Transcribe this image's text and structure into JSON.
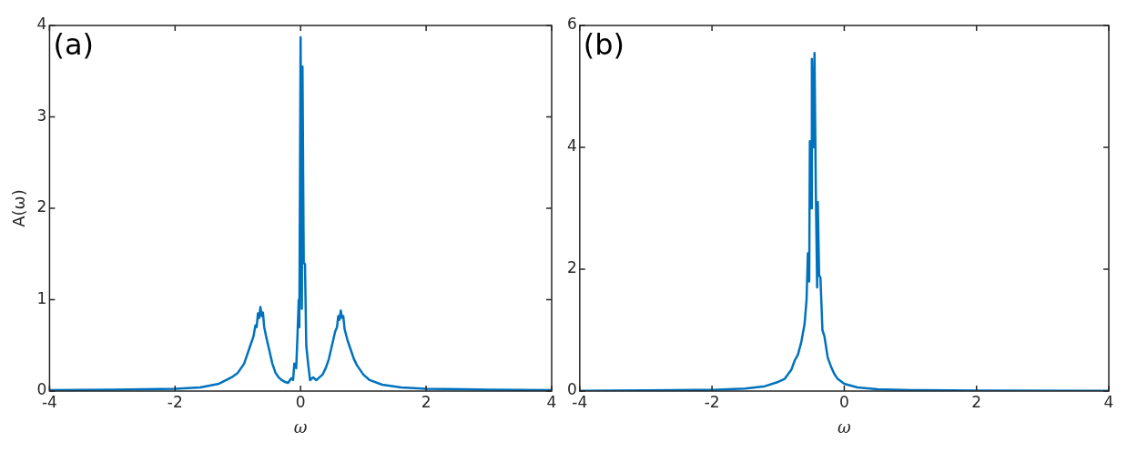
{
  "chart_data": [
    {
      "type": "line",
      "annotations": [
        "(a)"
      ],
      "xlabel": "ω",
      "ylabel": "A(ω)",
      "xlim": [
        -4,
        4
      ],
      "xticks": [
        -4,
        -2,
        0,
        2,
        4
      ],
      "ylim": [
        0,
        4
      ],
      "yticks": [
        0,
        1,
        2,
        3,
        4
      ],
      "grid": false,
      "legend": false,
      "marker": "none",
      "line_style": "solid",
      "series": [
        {
          "color": "#0072bd",
          "x": [
            -4,
            -3,
            -2,
            -1.6,
            -1.3,
            -1.1,
            -1.0,
            -0.9,
            -0.85,
            -0.8,
            -0.75,
            -0.72,
            -0.7,
            -0.68,
            -0.66,
            -0.64,
            -0.62,
            -0.6,
            -0.58,
            -0.55,
            -0.5,
            -0.45,
            -0.4,
            -0.35,
            -0.3,
            -0.25,
            -0.2,
            -0.15,
            -0.12,
            -0.1,
            -0.07,
            -0.05,
            -0.03,
            -0.02,
            0,
            0.02,
            0.03,
            0.05,
            0.07,
            0.09,
            0.12,
            0.15,
            0.2,
            0.25,
            0.3,
            0.35,
            0.4,
            0.45,
            0.5,
            0.55,
            0.58,
            0.6,
            0.62,
            0.64,
            0.66,
            0.68,
            0.7,
            0.75,
            0.8,
            0.85,
            0.9,
            1.0,
            1.1,
            1.3,
            1.6,
            2,
            3,
            4
          ],
          "values": [
            0.01,
            0.015,
            0.025,
            0.04,
            0.08,
            0.15,
            0.2,
            0.3,
            0.4,
            0.5,
            0.6,
            0.72,
            0.7,
            0.85,
            0.8,
            0.92,
            0.82,
            0.86,
            0.7,
            0.6,
            0.45,
            0.3,
            0.2,
            0.15,
            0.12,
            0.1,
            0.09,
            0.14,
            0.12,
            0.3,
            0.25,
            0.6,
            1.0,
            0.7,
            3.87,
            0.9,
            3.55,
            1.4,
            1.39,
            0.5,
            0.3,
            0.12,
            0.15,
            0.12,
            0.15,
            0.18,
            0.25,
            0.35,
            0.5,
            0.65,
            0.7,
            0.82,
            0.78,
            0.88,
            0.8,
            0.82,
            0.68,
            0.55,
            0.45,
            0.35,
            0.28,
            0.18,
            0.12,
            0.07,
            0.04,
            0.025,
            0.015,
            0.01
          ]
        }
      ]
    },
    {
      "type": "line",
      "annotations": [
        "(b)"
      ],
      "xlabel": "ω",
      "xlim": [
        -4,
        4
      ],
      "xticks": [
        -4,
        -2,
        0,
        2,
        4
      ],
      "ylim": [
        0,
        6
      ],
      "yticks": [
        0,
        2,
        4,
        6
      ],
      "grid": false,
      "legend": false,
      "marker": "none",
      "line_style": "solid",
      "series": [
        {
          "color": "#0072bd",
          "x": [
            -4,
            -3,
            -2,
            -1.5,
            -1.2,
            -1.0,
            -0.9,
            -0.8,
            -0.75,
            -0.7,
            -0.65,
            -0.6,
            -0.57,
            -0.55,
            -0.53,
            -0.52,
            -0.5,
            -0.49,
            -0.47,
            -0.45,
            -0.43,
            -0.41,
            -0.4,
            -0.38,
            -0.36,
            -0.33,
            -0.3,
            -0.25,
            -0.2,
            -0.15,
            -0.1,
            0,
            0.2,
            0.5,
            1,
            2,
            4
          ],
          "values": [
            0.005,
            0.01,
            0.02,
            0.04,
            0.08,
            0.15,
            0.2,
            0.35,
            0.5,
            0.6,
            0.8,
            1.1,
            1.5,
            2.26,
            1.8,
            4.1,
            3.0,
            5.45,
            4.0,
            5.55,
            3.3,
            1.7,
            3.1,
            1.9,
            1.86,
            1.0,
            0.9,
            0.55,
            0.4,
            0.28,
            0.2,
            0.12,
            0.06,
            0.03,
            0.015,
            0.008,
            0.005
          ]
        }
      ]
    }
  ]
}
